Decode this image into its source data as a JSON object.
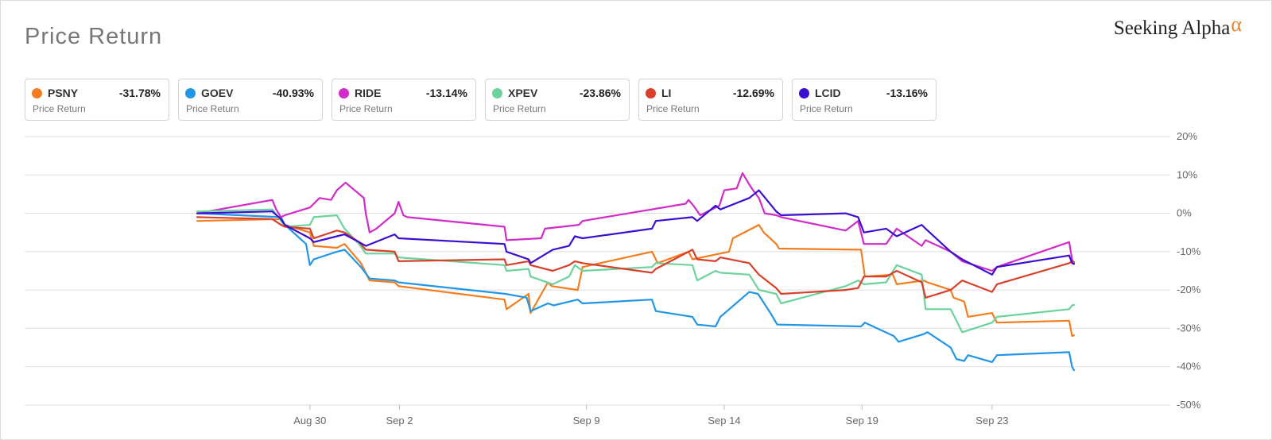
{
  "header": {
    "title": "Price Return",
    "logo_text": "Seeking Alpha",
    "logo_symbol": "α"
  },
  "colors": {
    "accent": "#e8842c",
    "grid": "#dddddd"
  },
  "legend": [
    {
      "ticker": "PSNY",
      "value": "-31.78%",
      "label": "Price Return",
      "color": "#f57c1f"
    },
    {
      "ticker": "GOEV",
      "value": "-40.93%",
      "label": "Price Return",
      "color": "#2196e6"
    },
    {
      "ticker": "RIDE",
      "value": "-13.14%",
      "label": "Price Return",
      "color": "#d12bc9"
    },
    {
      "ticker": "XPEV",
      "value": "-23.86%",
      "label": "Price Return",
      "color": "#6bd39c"
    },
    {
      "ticker": "LI",
      "value": "-12.69%",
      "label": "Price Return",
      "color": "#d9402b"
    },
    {
      "ticker": "LCID",
      "value": "-13.16%",
      "label": "Price Return",
      "color": "#3b0fd1"
    }
  ],
  "chart_data": {
    "type": "line",
    "title": "Price Return",
    "xlabel": "",
    "ylabel": "",
    "ylim": [
      -50,
      20
    ],
    "xlim": [
      0,
      100
    ],
    "yticks": [
      20,
      10,
      0,
      -10,
      -20,
      -30,
      -40,
      -50
    ],
    "ytick_labels": [
      "20%",
      "10%",
      "0%",
      "-10%",
      "-20%",
      "-30%",
      "-40%",
      "-50%"
    ],
    "xticks": [
      {
        "x": 11.7,
        "label": "Aug 30"
      },
      {
        "x": 21.0,
        "label": "Sep 2"
      },
      {
        "x": 40.4,
        "label": "Sep 9"
      },
      {
        "x": 54.7,
        "label": "Sep 14"
      },
      {
        "x": 69.0,
        "label": "Sep 19"
      },
      {
        "x": 82.5,
        "label": "Sep 23"
      }
    ],
    "grid": true,
    "series": [
      {
        "name": "PSNY",
        "color": "#f57c1f",
        "x": [
          0,
          8.7,
          9.1,
          11.7,
          12.1,
          14.5,
          15.3,
          17.0,
          17.9,
          20.5,
          20.9,
          31.9,
          32.1,
          34.4,
          34.6,
          36.4,
          36.8,
          39.5,
          40.0,
          47.2,
          47.8,
          51.0,
          51.4,
          55.2,
          55.6,
          58.3,
          58.8,
          60.1,
          60.4,
          68.9,
          69.3,
          72.2,
          72.6,
          75.4,
          75.8,
          78.2,
          78.5,
          79.6,
          80.0,
          82.5,
          83.0,
          90.5,
          90.8,
          91.0
        ],
        "y": [
          -2,
          -1.5,
          -3,
          -5,
          -8.5,
          -9,
          -8,
          -13,
          -17.5,
          -18,
          -19,
          -22.5,
          -25,
          -21,
          -26,
          -18,
          -19,
          -20,
          -14,
          -10,
          -13,
          -10,
          -12,
          -10,
          -6.5,
          -3,
          -5,
          -8,
          -9.2,
          -9.5,
          -16.5,
          -16,
          -18.5,
          -17.5,
          -18,
          -20,
          -22,
          -23,
          -27,
          -26,
          -28.5,
          -28,
          -32,
          -31.8
        ]
      },
      {
        "name": "GOEV",
        "color": "#2196e6",
        "x": [
          0,
          8.7,
          9.1,
          11.3,
          11.7,
          12.1,
          14.5,
          15.3,
          17.0,
          17.9,
          20.5,
          20.9,
          32.0,
          34.2,
          34.6,
          36.4,
          37.0,
          39.5,
          40.0,
          47.2,
          47.6,
          51.4,
          51.9,
          53.8,
          54.3,
          57.3,
          58.2,
          59.5,
          60.2,
          68.9,
          69.3,
          72.3,
          72.8,
          75.4,
          75.8,
          78.2,
          78.8,
          79.6,
          80.0,
          82.5,
          83.0,
          90.5,
          90.8,
          91.0
        ],
        "y": [
          0,
          -1,
          -3,
          -8,
          -13.5,
          -12,
          -10,
          -9.5,
          -14,
          -17,
          -17.5,
          -18,
          -21,
          -22,
          -25.5,
          -23.5,
          -24,
          -22.5,
          -23.5,
          -22.5,
          -25.5,
          -27,
          -29,
          -29.5,
          -27,
          -20.5,
          -21,
          -26,
          -29,
          -29.5,
          -28.5,
          -32,
          -33.5,
          -31.5,
          -31,
          -35,
          -38,
          -38.5,
          -37,
          -38.8,
          -37,
          -36.2,
          -40,
          -40.9
        ]
      },
      {
        "name": "RIDE",
        "color": "#d12bc9",
        "x": [
          0,
          7.8,
          8.2,
          8.7,
          9.1,
          11.7,
          12.1,
          12.7,
          13.9,
          14.5,
          15.4,
          17.3,
          17.5,
          17.9,
          18.6,
          20.5,
          20.9,
          21.4,
          21.8,
          31.9,
          32.1,
          35.7,
          36.1,
          39.6,
          40.0,
          50.7,
          51.0,
          51.5,
          52.2,
          54.2,
          54.7,
          56.0,
          56.6,
          57.3,
          57.7,
          58.3,
          58.9,
          60.1,
          60.6,
          67.3,
          68.6,
          69.2,
          71.5,
          72.6,
          75.2,
          75.6,
          78.2,
          79.4,
          82.5,
          83.0,
          90.5,
          90.8,
          91.0
        ],
        "y": [
          0,
          3.5,
          1,
          -1,
          -0.5,
          1.5,
          2.5,
          4,
          3.5,
          6,
          8,
          4,
          0,
          -5,
          -4,
          0,
          3,
          -0.5,
          -1,
          -3.5,
          -7,
          -6.5,
          -4,
          -3,
          -2,
          2.5,
          3.5,
          2,
          -0.5,
          2,
          6,
          6.5,
          10.5,
          7.5,
          6,
          4,
          0,
          -0.5,
          -1,
          -4.5,
          -2,
          -8,
          -8,
          -4,
          -8.5,
          -7,
          -10,
          -12.5,
          -15,
          -14,
          -7.5,
          -12,
          -13.1
        ]
      },
      {
        "name": "XPEV",
        "color": "#6bd39c",
        "x": [
          0,
          7.8,
          8.7,
          9.1,
          11.7,
          12.1,
          14.5,
          15.3,
          16.8,
          17.5,
          20.5,
          20.9,
          31.9,
          32.1,
          34.4,
          34.6,
          36.9,
          38.6,
          39.2,
          40.0,
          47.2,
          47.6,
          51.4,
          51.9,
          53.8,
          54.3,
          57.3,
          58.3,
          60.1,
          60.6,
          67.3,
          68.6,
          69.2,
          71.5,
          72.6,
          75.2,
          75.6,
          78.2,
          79.4,
          82.5,
          83.0,
          90.5,
          90.8,
          91.0
        ],
        "y": [
          0.5,
          1,
          -2,
          -3.5,
          -3,
          -1,
          -0.5,
          -4,
          -8,
          -10.5,
          -10.5,
          -11.5,
          -13.5,
          -15,
          -14.5,
          -16.5,
          -18.5,
          -16.5,
          -13.5,
          -15,
          -14,
          -13,
          -13.5,
          -17.5,
          -15,
          -15.5,
          -16,
          -20,
          -21,
          -23.5,
          -19,
          -17.5,
          -18.5,
          -18,
          -13.5,
          -16,
          -25,
          -25,
          -31,
          -28.5,
          -27,
          -25,
          -24,
          -23.9
        ]
      },
      {
        "name": "LI",
        "color": "#d9402b",
        "x": [
          0,
          7.8,
          8.7,
          9.1,
          11.7,
          12.1,
          14.5,
          15.3,
          16.8,
          17.5,
          20.5,
          20.9,
          31.9,
          32.1,
          34.4,
          34.6,
          36.9,
          38.6,
          39.2,
          40.0,
          47.2,
          47.6,
          51.4,
          51.9,
          53.8,
          54.3,
          57.3,
          58.3,
          60.1,
          60.6,
          67.3,
          68.6,
          69.2,
          71.5,
          72.6,
          75.2,
          75.6,
          78.2,
          79.4,
          82.5,
          83.0,
          90.5,
          90.8,
          91.0
        ],
        "y": [
          -1,
          -1.5,
          -3,
          -3.5,
          -4,
          -6.5,
          -4.5,
          -5,
          -7.5,
          -9.5,
          -10,
          -12.5,
          -12,
          -13.5,
          -12.5,
          -13.5,
          -15,
          -13.5,
          -12.5,
          -13,
          -15.5,
          -14.5,
          -9.5,
          -12,
          -12.5,
          -11.5,
          -13,
          -16,
          -19.5,
          -21,
          -20,
          -19.5,
          -16.5,
          -16.5,
          -15,
          -18,
          -22,
          -20,
          -17.5,
          -20.5,
          -18.5,
          -13,
          -12.5,
          -12.7
        ]
      },
      {
        "name": "LCID",
        "color": "#3b0fd1",
        "x": [
          0,
          7.8,
          8.7,
          9.1,
          11.7,
          12.1,
          14.5,
          15.3,
          16.8,
          17.5,
          20.5,
          20.9,
          31.9,
          32.1,
          34.4,
          34.6,
          36.9,
          38.6,
          39.2,
          40.0,
          47.2,
          47.6,
          51.4,
          51.9,
          53.8,
          54.3,
          57.3,
          58.3,
          60.1,
          60.6,
          67.3,
          68.6,
          69.2,
          71.5,
          72.6,
          75.2,
          75.6,
          78.2,
          79.4,
          82.5,
          83.0,
          90.5,
          90.8,
          91.0
        ],
        "y": [
          0,
          0.5,
          -1.5,
          -3,
          -6.5,
          -7.5,
          -6,
          -5.5,
          -7.5,
          -8.5,
          -5.5,
          -6.5,
          -8,
          -10,
          -12,
          -13,
          -9.5,
          -8.5,
          -6,
          -6.5,
          -4,
          -2,
          -1,
          -2,
          2,
          1,
          4,
          6,
          0.5,
          -0.5,
          0,
          -1,
          -5,
          -4,
          -6,
          -3,
          -4,
          -10,
          -12,
          -16,
          -14,
          -11,
          -13,
          -13.2
        ]
      }
    ]
  }
}
